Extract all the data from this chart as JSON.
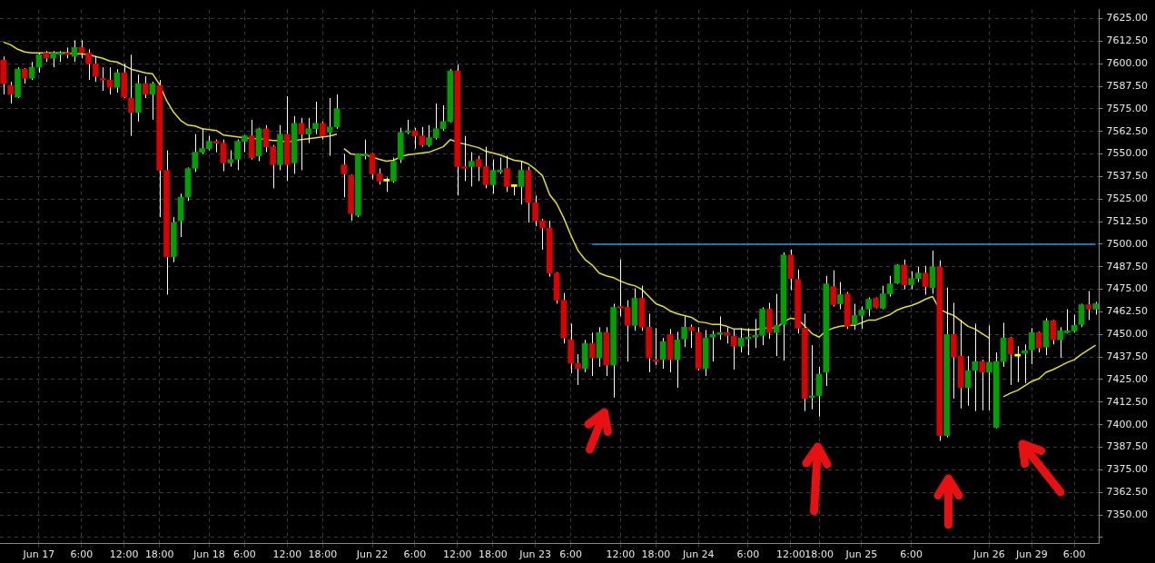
{
  "chart_data": {
    "type": "candlestick",
    "grid": true,
    "marker": "none",
    "ylim": [
      7334,
      7630
    ],
    "yticks": [
      {
        "value": 7337.5,
        "label": null
      },
      {
        "value": 7350,
        "label": "7350.00"
      },
      {
        "value": 7362.5,
        "label": "7362.50"
      },
      {
        "value": 7375,
        "label": "7375.00"
      },
      {
        "value": 7387.5,
        "label": "7387.50"
      },
      {
        "value": 7400,
        "label": "7400.00"
      },
      {
        "value": 7412.5,
        "label": "7412.50"
      },
      {
        "value": 7425,
        "label": "7425.00"
      },
      {
        "value": 7437.5,
        "label": "7437.50"
      },
      {
        "value": 7450,
        "label": "7450.00"
      },
      {
        "value": 7462.5,
        "label": "7462.50"
      },
      {
        "value": 7475,
        "label": "7475.00"
      },
      {
        "value": 7487.5,
        "label": "7487.50"
      },
      {
        "value": 7500,
        "label": "7500.00"
      },
      {
        "value": 7512.5,
        "label": "7512.50"
      },
      {
        "value": 7525,
        "label": "7525.00"
      },
      {
        "value": 7537.5,
        "label": "7537.50"
      },
      {
        "value": 7550,
        "label": "7550.00"
      },
      {
        "value": 7562.5,
        "label": "7562.50"
      },
      {
        "value": 7575,
        "label": "7575.00"
      },
      {
        "value": 7587.5,
        "label": "7587.50"
      },
      {
        "value": 7600,
        "label": "7600.00"
      },
      {
        "value": 7612.5,
        "label": "7612.50"
      },
      {
        "value": 7625,
        "label": "7625.00"
      }
    ],
    "categories": [
      null,
      null,
      null,
      null,
      null,
      "Jun 17",
      null,
      null,
      null,
      null,
      null,
      "6:00",
      null,
      null,
      null,
      null,
      null,
      "12:00",
      null,
      null,
      null,
      null,
      "18:00",
      null,
      null,
      null,
      null,
      null,
      null,
      "Jun 18",
      null,
      null,
      null,
      null,
      "6:00",
      null,
      null,
      null,
      null,
      null,
      "12:00",
      null,
      null,
      null,
      null,
      "18:00",
      null,
      null,
      null,
      null,
      null,
      null,
      "Jun 22",
      null,
      null,
      null,
      null,
      null,
      "6:00",
      null,
      null,
      null,
      null,
      null,
      "12:00",
      null,
      null,
      null,
      null,
      "18:00",
      null,
      null,
      null,
      null,
      null,
      "Jun 23",
      null,
      null,
      null,
      null,
      "6:00",
      null,
      null,
      null,
      null,
      null,
      null,
      "12:00",
      null,
      null,
      null,
      null,
      "18:00",
      null,
      null,
      null,
      null,
      null,
      "Jun 24",
      null,
      null,
      null,
      null,
      null,
      null,
      "6:00",
      null,
      null,
      null,
      null,
      null,
      "12:00",
      null,
      null,
      null,
      "18:00",
      null,
      null,
      null,
      null,
      null,
      "Jun 25",
      null,
      null,
      null,
      null,
      null,
      null,
      "6:00",
      null,
      null,
      null,
      null,
      null,
      null,
      null,
      null,
      null,
      null,
      "Jun 26",
      null,
      null,
      null,
      null,
      null,
      "Jun 29",
      null,
      null,
      null,
      null,
      null,
      "6:00",
      null,
      null,
      null
    ],
    "ohlc": [
      [
        7602,
        7604,
        7583,
        7589
      ],
      [
        7588,
        7590,
        7578,
        7583
      ],
      [
        7581.5,
        7598,
        7581,
        7597
      ],
      [
        7597,
        7597.5,
        7589,
        7592
      ],
      [
        7592,
        7601,
        7591,
        7598
      ],
      [
        7598,
        7606,
        7595,
        7605
      ],
      [
        7606,
        7607,
        7601,
        7603
      ],
      [
        7603,
        7607,
        7598,
        7606
      ],
      [
        7605,
        7607,
        7601,
        7606
      ],
      [
        7606,
        7609,
        7603,
        7605
      ],
      [
        7604,
        7613,
        7601,
        7609
      ],
      [
        7609,
        7613,
        7603,
        7606
      ],
      [
        7606,
        7608,
        7591,
        7600
      ],
      [
        7600,
        7604,
        7590,
        7593
      ],
      [
        7592,
        7598,
        7585,
        7591
      ],
      [
        7591,
        7598,
        7583,
        7587
      ],
      [
        7587,
        7597,
        7584,
        7595
      ],
      [
        7595,
        7600,
        7581,
        7581.5
      ],
      [
        7581,
        7605,
        7560,
        7573
      ],
      [
        7573,
        7594,
        7568,
        7589
      ],
      [
        7589,
        7593,
        7581,
        7583
      ],
      [
        7583,
        7590,
        7569,
        7589
      ],
      [
        7588,
        7591,
        7515,
        7541
      ],
      [
        7541,
        7552,
        7472,
        7493
      ],
      [
        7493,
        7515,
        7490,
        7512
      ],
      [
        7513,
        7528,
        7504,
        7526
      ],
      [
        7526,
        7542.5,
        7524,
        7542
      ],
      [
        7542,
        7561,
        7540,
        7551
      ],
      [
        7551,
        7564,
        7550,
        7553
      ],
      [
        7553,
        7560,
        7552,
        7557
      ],
      [
        7557,
        7558,
        7551,
        7556
      ],
      [
        7556,
        7558,
        7540.5,
        7545
      ],
      [
        7545,
        7552,
        7543,
        7547
      ],
      [
        7547,
        7558,
        7541,
        7557
      ],
      [
        7557,
        7560.5,
        7551,
        7560
      ],
      [
        7560,
        7569,
        7547,
        7548
      ],
      [
        7549,
        7564.5,
        7546,
        7564
      ],
      [
        7564,
        7566,
        7551,
        7554
      ],
      [
        7554,
        7555,
        7531,
        7544
      ],
      [
        7544,
        7566,
        7541,
        7561
      ],
      [
        7561,
        7582,
        7535,
        7544
      ],
      [
        7545,
        7571,
        7539,
        7567
      ],
      [
        7567,
        7570,
        7541,
        7561
      ],
      [
        7561,
        7570,
        7556,
        7564
      ],
      [
        7564,
        7579,
        7561,
        7567
      ],
      [
        7567,
        7568,
        7558,
        7560
      ],
      [
        7562,
        7581,
        7549,
        7565
      ],
      [
        7565,
        7583,
        7564,
        7575
      ],
      [
        7544,
        7550,
        7526,
        7539
      ],
      [
        7538,
        7538.5,
        7513,
        7517
      ],
      [
        7516,
        7550,
        7515,
        7550
      ],
      [
        7549,
        7558,
        7547,
        7550
      ],
      [
        7550,
        7550.5,
        7536,
        7539
      ],
      [
        7539,
        7542,
        7533,
        7535
      ],
      [
        7535,
        7537,
        7529,
        7535
      ],
      [
        7535,
        7548,
        7534,
        7546
      ],
      [
        7547,
        7564.5,
        7545,
        7562
      ],
      [
        7562,
        7569,
        7561,
        7563
      ],
      [
        7563,
        7564.5,
        7553,
        7560
      ],
      [
        7560,
        7565,
        7554,
        7555
      ],
      [
        7555,
        7566,
        7554,
        7559
      ],
      [
        7559,
        7578,
        7558,
        7564
      ],
      [
        7564,
        7577,
        7563,
        7568
      ],
      [
        7568,
        7597,
        7567.5,
        7596
      ],
      [
        7596,
        7599.5,
        7527,
        7543
      ],
      [
        7543,
        7560,
        7535,
        7542
      ],
      [
        7543,
        7551,
        7532,
        7546
      ],
      [
        7547,
        7549,
        7535,
        7543
      ],
      [
        7543,
        7554,
        7531,
        7533
      ],
      [
        7533,
        7547,
        7528,
        7541
      ],
      [
        7540,
        7548,
        7539,
        7541
      ],
      [
        7542,
        7549,
        7529,
        7532
      ],
      [
        7532.5,
        7533,
        7527,
        7532
      ],
      [
        7532,
        7546,
        7522,
        7541
      ],
      [
        7541,
        7543,
        7512,
        7523
      ],
      [
        7523,
        7527,
        7510,
        7513
      ],
      [
        7513,
        7514,
        7497,
        7509
      ],
      [
        7509,
        7513,
        7482,
        7484
      ],
      [
        7484,
        7484.5,
        7467,
        7469
      ],
      [
        7469,
        7473,
        7445,
        7448
      ],
      [
        7447,
        7456,
        7428.5,
        7434
      ],
      [
        7434,
        7439,
        7422,
        7431
      ],
      [
        7431,
        7447,
        7429,
        7445
      ],
      [
        7445,
        7451,
        7427,
        7437
      ],
      [
        7437,
        7454,
        7432,
        7451
      ],
      [
        7451,
        7454,
        7427,
        7433
      ],
      [
        7433,
        7467,
        7415,
        7465
      ],
      [
        7465,
        7491.5,
        7460,
        7464.5
      ],
      [
        7465,
        7469,
        7435,
        7455
      ],
      [
        7455,
        7475.5,
        7452,
        7470
      ],
      [
        7470,
        7477,
        7452,
        7454
      ],
      [
        7454,
        7461.5,
        7429,
        7437
      ],
      [
        7436,
        7453.5,
        7433,
        7435
      ],
      [
        7436,
        7448,
        7431,
        7446
      ],
      [
        7450,
        7453,
        7429,
        7436
      ],
      [
        7436,
        7451.5,
        7420.5,
        7447
      ],
      [
        7447.5,
        7460,
        7443,
        7454
      ],
      [
        7454,
        7455.5,
        7442.5,
        7452
      ],
      [
        7451,
        7454,
        7430,
        7431
      ],
      [
        7431,
        7452.5,
        7427,
        7448
      ],
      [
        7448.5,
        7452,
        7435,
        7450
      ],
      [
        7450,
        7460,
        7447,
        7451
      ],
      [
        7451,
        7454,
        7445,
        7449.5
      ],
      [
        7449,
        7453,
        7430.5,
        7443.5
      ],
      [
        7443.5,
        7453.5,
        7440,
        7448
      ],
      [
        7447.5,
        7453.5,
        7438.5,
        7448.5
      ],
      [
        7448.5,
        7458.5,
        7442.5,
        7449.5
      ],
      [
        7449.5,
        7465,
        7444,
        7464
      ],
      [
        7464,
        7467.5,
        7447.5,
        7451
      ],
      [
        7451,
        7472.5,
        7438,
        7455
      ],
      [
        7455.5,
        7495.5,
        7435.5,
        7494
      ],
      [
        7494,
        7497,
        7474.5,
        7481
      ],
      [
        7480.5,
        7486,
        7450.5,
        7453.5
      ],
      [
        7453.5,
        7461.5,
        7407.5,
        7414.5
      ],
      [
        7415,
        7444,
        7408.5,
        7416
      ],
      [
        7416,
        7432,
        7404.5,
        7428
      ],
      [
        7429,
        7482.5,
        7421.5,
        7478
      ],
      [
        7476.5,
        7485.5,
        7465.5,
        7466.5
      ],
      [
        7467,
        7479,
        7464,
        7472
      ],
      [
        7472.5,
        7473.5,
        7453,
        7454.5
      ],
      [
        7455.5,
        7467,
        7452.5,
        7460.5
      ],
      [
        7460.5,
        7465.5,
        7453,
        7463.5
      ],
      [
        7464,
        7470.5,
        7460,
        7469.5
      ],
      [
        7470,
        7470.5,
        7464.5,
        7465
      ],
      [
        7464.5,
        7477,
        7464,
        7472.5
      ],
      [
        7472.5,
        7482.5,
        7471,
        7478
      ],
      [
        7478.5,
        7489,
        7478,
        7488.5
      ],
      [
        7488.5,
        7491.5,
        7475,
        7477.5
      ],
      [
        7477.5,
        7485,
        7475,
        7481
      ],
      [
        7481,
        7487.5,
        7479,
        7484
      ],
      [
        7484,
        7488,
        7472,
        7476.5
      ],
      [
        7476,
        7496.5,
        7472.5,
        7487.5
      ],
      [
        7487.5,
        7491,
        7391,
        7394
      ],
      [
        7394,
        7476,
        7393,
        7450
      ],
      [
        7450,
        7467.5,
        7414.5,
        7437.5
      ],
      [
        7438,
        7458,
        7409,
        7420.5
      ],
      [
        7420.5,
        7438,
        7410.5,
        7430
      ],
      [
        7430,
        7456,
        7407.5,
        7435
      ],
      [
        7435,
        7436,
        7408,
        7429
      ],
      [
        7429,
        7455,
        7408,
        7434.5
      ],
      [
        7398.5,
        7440,
        7398,
        7435
      ],
      [
        7435,
        7456.5,
        7432,
        7448
      ],
      [
        7448,
        7448.5,
        7422,
        7439
      ],
      [
        7438.5,
        7443.5,
        7423.5,
        7438
      ],
      [
        7439.5,
        7444.5,
        7423,
        7441
      ],
      [
        7441.5,
        7453.5,
        7433.5,
        7451
      ],
      [
        7451,
        7451.5,
        7440,
        7442.5
      ],
      [
        7443,
        7459,
        7438.5,
        7457.5
      ],
      [
        7457.5,
        7458,
        7444.5,
        7447
      ],
      [
        7447,
        7454,
        7437,
        7452
      ],
      [
        7451,
        7464,
        7450.5,
        7452
      ],
      [
        7452,
        7461,
        7451,
        7455
      ],
      [
        7455.5,
        7467,
        7454,
        7466.5
      ],
      [
        7466.5,
        7474,
        7458,
        7464
      ],
      [
        7464,
        7468,
        7461,
        7467
      ]
    ],
    "colors": [
      "#dd0000",
      "#dd0000",
      "#00a000",
      "#dd0000",
      "#00a000",
      "#00a000",
      "#dd0000",
      "#00a000",
      "#00a000",
      "#dd0000",
      "#00a000",
      "#dd0000",
      "#dd0000",
      "#dd0000",
      "#dd0000",
      "#dd0000",
      "#00a000",
      "#dd0000",
      "#dd0000",
      "#00a000",
      "#dd0000",
      "#00a000",
      "#dd0000",
      "#dd0000",
      "#00a000",
      "#00a000",
      "#00a000",
      "#00a000",
      "#00a000",
      "#00a000",
      "#dd0000",
      "#dd0000",
      "#00a000",
      "#00a000",
      "#00a000",
      "#dd0000",
      "#00a000",
      "#dd0000",
      "#dd0000",
      "#00a000",
      "#dd0000",
      "#00a000",
      "#dd0000",
      "#00a000",
      "#00a000",
      "#dd0000",
      "#00a000",
      "#00a000",
      "#dd0000",
      "#dd0000",
      "#00a000",
      "#00a000",
      "#dd0000",
      "#dd0000",
      "#ffff00",
      "#00a000",
      "#00a000",
      "#00a000",
      "#dd0000",
      "#dd0000",
      "#00a000",
      "#00a000",
      "#00a000",
      "#00a000",
      "#dd0000",
      "#dd0000",
      "#00a000",
      "#dd0000",
      "#dd0000",
      "#00a000",
      "#00a000",
      "#dd0000",
      "#ffff00",
      "#00a000",
      "#dd0000",
      "#dd0000",
      "#dd0000",
      "#dd0000",
      "#dd0000",
      "#dd0000",
      "#dd0000",
      "#dd0000",
      "#00a000",
      "#dd0000",
      "#00a000",
      "#dd0000",
      "#00a000",
      "#dd0000",
      "#dd0000",
      "#00a000",
      "#dd0000",
      "#dd0000",
      "#dd0000",
      "#00a000",
      "#dd0000",
      "#00a000",
      "#00a000",
      "#dd0000",
      "#dd0000",
      "#00a000",
      "#00a000",
      "#00a000",
      "#dd0000",
      "#dd0000",
      "#00a000",
      "#00a000",
      "#00a000",
      "#00a000",
      "#dd0000",
      "#00a000",
      "#00a000",
      "#dd0000",
      "#dd0000",
      "#dd0000",
      "#00a000",
      "#00a000",
      "#00a000",
      "#dd0000",
      "#00a000",
      "#dd0000",
      "#00a000",
      "#00a000",
      "#00a000",
      "#dd0000",
      "#00a000",
      "#00a000",
      "#00a000",
      "#dd0000",
      "#00a000",
      "#00a000",
      "#dd0000",
      "#00a000",
      "#dd0000",
      "#00a000",
      "#dd0000",
      "#dd0000",
      "#00a000",
      "#00a000",
      "#dd0000",
      "#00a000",
      "#00a000",
      "#00a000",
      "#dd0000",
      "#ffff00",
      "#00a000",
      "#00a000",
      "#dd0000",
      "#00a000",
      "#dd0000",
      "#00a000",
      "#00a000",
      "#00a000",
      "#00a000",
      "#dd0000",
      "#00a000"
    ],
    "series": [
      {
        "type": "line",
        "color": "#e6e600",
        "values": [
          7612,
          7610.5,
          7608,
          7606.5,
          7606,
          7606,
          7606,
          7606,
          7606,
          7606,
          7605.5,
          7605.5,
          7605,
          7604,
          7603,
          7601.5,
          7601,
          7599,
          7597,
          7596,
          7595,
          7594.5,
          7588.5,
          7579.5,
          7573,
          7568.5,
          7566,
          7565.5,
          7564,
          7563.5,
          7563,
          7560.5,
          7560,
          7559.5,
          7559,
          7558.5,
          7558.5,
          7558,
          7557.5,
          7557.5,
          7556.5,
          7557.5,
          7558,
          7558.5,
          7559,
          7559.5,
          7560,
          7561,
          null,
          null,
          null,
          null,
          null,
          null,
          null,
          null,
          null,
          null,
          null,
          null,
          null,
          null,
          null,
          null,
          null,
          null,
          null,
          null,
          null,
          null,
          null,
          null,
          null,
          null,
          null,
          null,
          null,
          null,
          null,
          null,
          null,
          null,
          null,
          null,
          null,
          null,
          null,
          null,
          null,
          null,
          null,
          null,
          null,
          null,
          null,
          null,
          null,
          null,
          null,
          null,
          null,
          null,
          null,
          null,
          null,
          null,
          null,
          null,
          null,
          null,
          null,
          null,
          null,
          null,
          null,
          null,
          null,
          null,
          null,
          null,
          null,
          null,
          null,
          null,
          null,
          null,
          null,
          null,
          null,
          null,
          null,
          null,
          null,
          null,
          null,
          null,
          null,
          null,
          null,
          null,
          null,
          null,
          null,
          null,
          null,
          null,
          null,
          null,
          null,
          null,
          null,
          null,
          null,
          null,
          null
        ]
      },
      {
        "type": "line",
        "color": "#e6e600",
        "values": [
          null,
          null,
          null,
          null,
          null,
          null,
          null,
          null,
          null,
          null,
          null,
          null,
          null,
          null,
          null,
          null,
          null,
          null,
          null,
          null,
          null,
          null,
          null,
          null,
          null,
          null,
          null,
          null,
          null,
          null,
          null,
          null,
          null,
          null,
          null,
          null,
          null,
          null,
          null,
          null,
          null,
          null,
          null,
          null,
          null,
          null,
          null,
          null,
          7553,
          7550,
          7549.5,
          7549.5,
          null,
          7547,
          7546,
          7546.5,
          7548.5,
          7549.5,
          7550,
          7550.5,
          7551,
          7552.5,
          7554,
          7558,
          7556.5,
          7555.5,
          7554.5,
          7553.5,
          7551.5,
          7550.5,
          7549.5,
          7548,
          7546.5,
          7546,
          7544.5,
          7541.5,
          7538,
          7527.5,
          7522.5,
          7514.5,
          7505,
          7496.5,
          7491.5,
          7488.5,
          7484,
          7482.5,
          7481.5,
          7479.5,
          7478,
          7477,
          7475,
          7471,
          7467,
          7465.5,
          7463,
          7461.5,
          7460.5,
          7459.5,
          7457,
          7456.5,
          7455.5,
          7455.5,
          7454.5,
          7453,
          7453,
          7452.5,
          7452.5,
          7453.5,
          7453.5,
          7453.5,
          7457,
          7459,
          7458.5,
          7454.5,
          7450.5,
          7448.5,
          7452,
          7453.5,
          7454.5,
          7455,
          7455,
          7456.5,
          7458,
          7458,
          7459.5,
          7461,
          7463.5,
          7465,
          7466,
          7467.5,
          7469.5,
          7471,
          7464,
          7462,
          7460.5,
          7457.5,
          7454.5,
          7453,
          7450.5,
          7448,
          null,
          null,
          null,
          null,
          null,
          null,
          null,
          null,
          null,
          null,
          null,
          null,
          null,
          null,
          null
        ]
      },
      {
        "type": "line",
        "color": "#e6e600",
        "values": [
          null,
          null,
          null,
          null,
          null,
          null,
          null,
          null,
          null,
          null,
          null,
          null,
          null,
          null,
          null,
          null,
          null,
          null,
          null,
          null,
          null,
          null,
          null,
          null,
          null,
          null,
          null,
          null,
          null,
          null,
          null,
          null,
          null,
          null,
          null,
          null,
          null,
          null,
          null,
          null,
          null,
          null,
          null,
          null,
          null,
          null,
          null,
          null,
          null,
          null,
          null,
          null,
          null,
          null,
          null,
          null,
          null,
          null,
          null,
          null,
          null,
          null,
          null,
          null,
          null,
          null,
          null,
          null,
          null,
          null,
          null,
          null,
          null,
          null,
          null,
          null,
          null,
          null,
          null,
          null,
          null,
          null,
          null,
          null,
          null,
          null,
          null,
          null,
          null,
          null,
          null,
          null,
          null,
          null,
          null,
          null,
          null,
          null,
          null,
          null,
          null,
          null,
          null,
          null,
          null,
          null,
          null,
          null,
          null,
          null,
          null,
          null,
          null,
          null,
          null,
          null,
          null,
          null,
          null,
          null,
          null,
          null,
          null,
          null,
          null,
          null,
          null,
          null,
          null,
          null,
          null,
          null,
          null,
          null,
          null,
          null,
          null,
          null,
          null,
          null,
          null,
          7415.5,
          7417.5,
          7419,
          7421.5,
          7424,
          7425.5,
          7429,
          7430.5,
          7432.5,
          7434.5,
          7436,
          7439,
          7441.5,
          7444
        ]
      },
      {
        "type": "line",
        "color": "#1e9be8",
        "values": [
          null,
          null,
          null,
          null,
          null,
          null,
          null,
          null,
          null,
          null,
          null,
          null,
          null,
          null,
          null,
          null,
          null,
          null,
          null,
          null,
          null,
          null,
          null,
          null,
          null,
          null,
          null,
          null,
          null,
          null,
          null,
          null,
          null,
          null,
          null,
          null,
          null,
          null,
          null,
          null,
          null,
          null,
          null,
          null,
          null,
          null,
          null,
          null,
          null,
          null,
          null,
          null,
          null,
          null,
          null,
          null,
          null,
          null,
          null,
          null,
          null,
          null,
          null,
          null,
          null,
          null,
          null,
          null,
          null,
          null,
          null,
          null,
          null,
          null,
          null,
          null,
          null,
          null,
          null,
          null,
          null,
          null,
          null,
          7500,
          7500,
          7500,
          7500,
          7500,
          7500,
          7500,
          7500,
          7500,
          7500,
          7500,
          7500,
          7500,
          7500,
          7500,
          7500,
          7500,
          7500,
          7500,
          7500,
          7500,
          7500,
          7500,
          7500,
          7500,
          7500,
          7500,
          7500,
          7500,
          7500,
          7500,
          7500,
          7500,
          7500,
          7500,
          7500,
          7500,
          7500,
          7500,
          7500,
          7500,
          7500,
          7500,
          7500,
          7500,
          7500,
          7500,
          7500,
          7500,
          7500,
          7500,
          7500,
          7500,
          7500,
          7500,
          7500,
          7500,
          7500,
          7500,
          7500,
          7500,
          7500,
          7500,
          7500,
          7500,
          7500,
          7500,
          7500,
          7500,
          7500,
          7500,
          7500
        ]
      }
    ]
  }
}
